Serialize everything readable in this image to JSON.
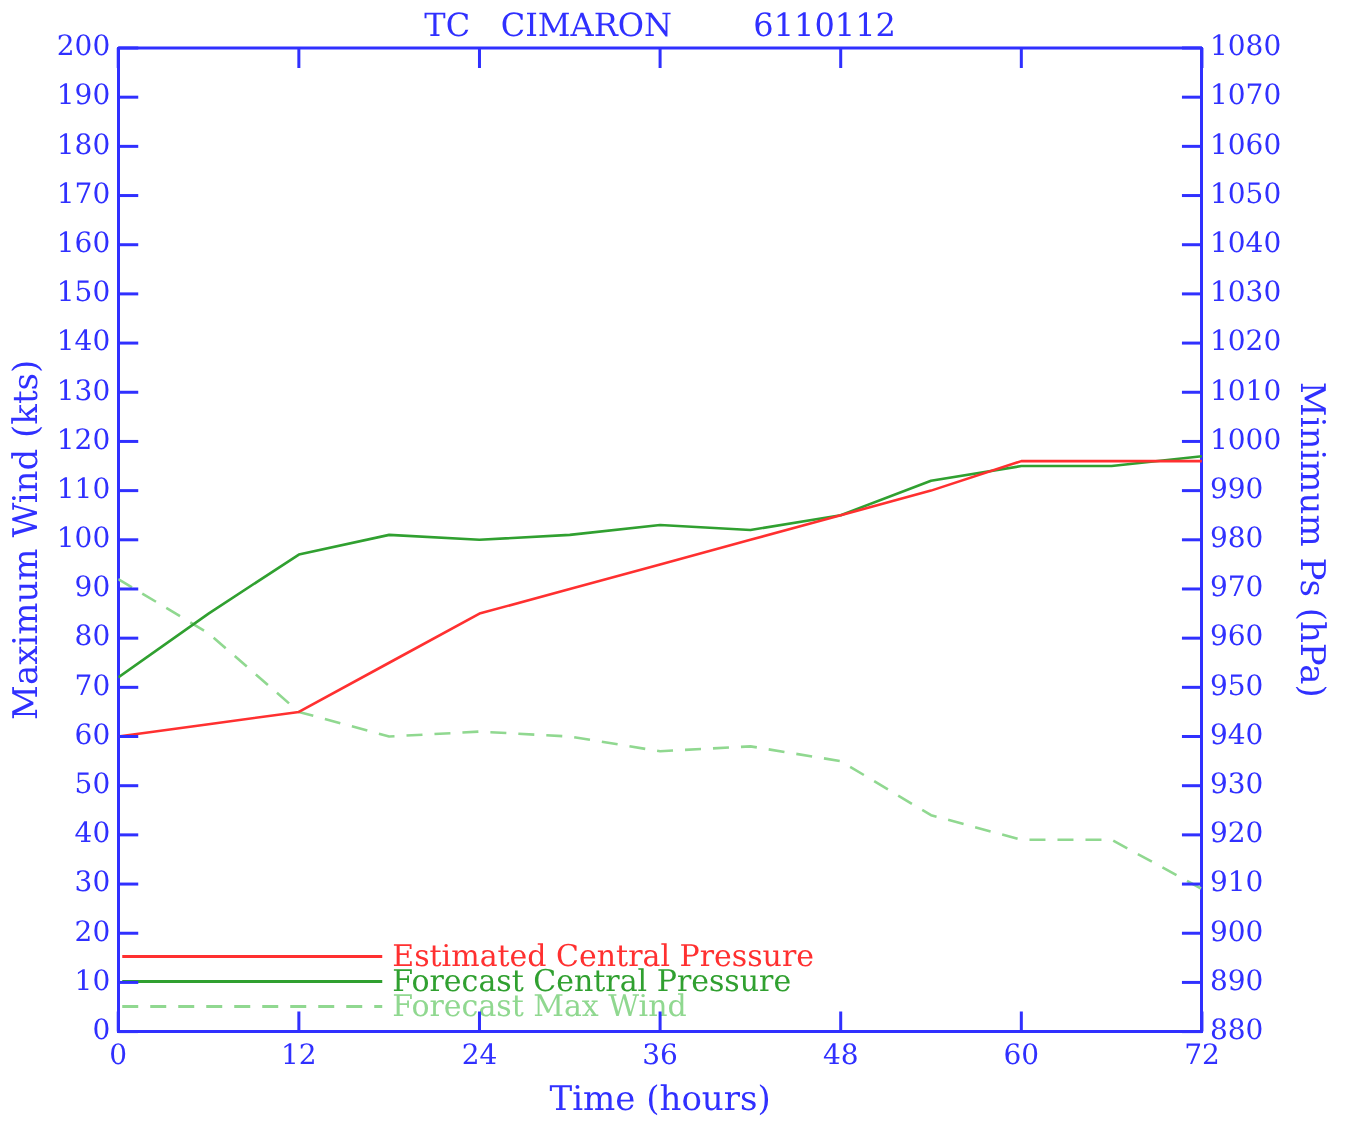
{
  "chart_data": {
    "type": "line",
    "title": "TC   CIMARON        6110112",
    "xlabel": "Time (hours)",
    "ylabel": "Maximum Wind (kts)",
    "y2label": "Minimum Ps (hPa)",
    "x": [
      0,
      6,
      12,
      18,
      24,
      30,
      36,
      42,
      48,
      54,
      60,
      66,
      72
    ],
    "series": [
      {
        "name": "Estimated Central Pressure",
        "color": "#ff3030",
        "axis": "y2",
        "line_style": "solid",
        "values": [
          940,
          942.5,
          945,
          955,
          965,
          970,
          975,
          980,
          985,
          990,
          996,
          996,
          996
        ]
      },
      {
        "name": "Forecast Central Pressure",
        "color": "#30a030",
        "axis": "y2",
        "line_style": "solid",
        "values": [
          952,
          965,
          977,
          981,
          980,
          981,
          983,
          982,
          985,
          992,
          995,
          995,
          997
        ]
      },
      {
        "name": "Forecast Max Wind",
        "color": "#90d890",
        "axis": "y",
        "line_style": "dashed",
        "values": [
          92,
          81,
          65,
          60,
          61,
          60,
          57,
          58,
          55,
          44,
          39,
          39,
          29
        ]
      }
    ],
    "xlim": [
      0,
      72
    ],
    "xticks": [
      0,
      12,
      24,
      36,
      48,
      60,
      72
    ],
    "ylim": [
      0,
      200
    ],
    "yticks": [
      0,
      10,
      20,
      30,
      40,
      50,
      60,
      70,
      80,
      90,
      100,
      110,
      120,
      130,
      140,
      150,
      160,
      170,
      180,
      190,
      200
    ],
    "y2lim": [
      880,
      1080
    ],
    "y2ticks": [
      880,
      890,
      900,
      910,
      920,
      930,
      940,
      950,
      960,
      970,
      980,
      990,
      1000,
      1010,
      1020,
      1030,
      1040,
      1050,
      1060,
      1070,
      1080
    ],
    "grid": false,
    "legend": "bottom left",
    "marker": "none"
  }
}
